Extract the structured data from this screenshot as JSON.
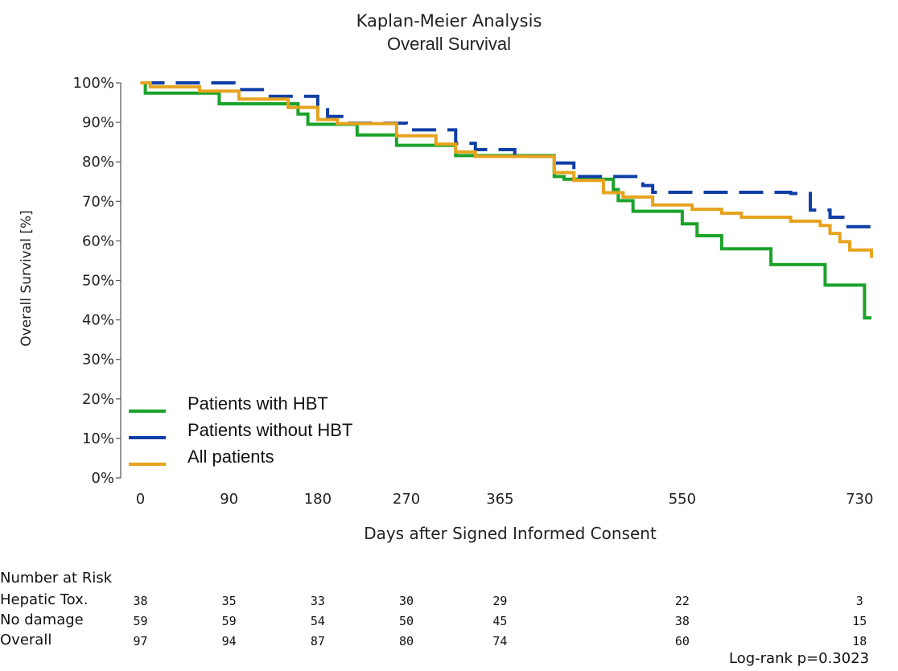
{
  "chart_data": {
    "type": "line",
    "title": "Kaplan-Meier Analysis",
    "subtitle": "Overall Survival",
    "xlabel": "Days after Signed Informed Consent",
    "ylabel": "Overall Survival [%]",
    "x_ticks": [
      "0",
      "90",
      "180",
      "270",
      "365",
      "550",
      "730"
    ],
    "y_ticks": [
      "0%",
      "10%",
      "20%",
      "30%",
      "40%",
      "50%",
      "60%",
      "70%",
      "80%",
      "90%",
      "100%"
    ],
    "xlim": [
      -20,
      760
    ],
    "ylim": [
      0,
      100
    ],
    "grid": false,
    "legend_position": "bottom-left",
    "series": [
      {
        "name": "Patients with HBT",
        "color": "#1aa32a",
        "dash": "solid",
        "x": [
          0,
          5,
          80,
          160,
          170,
          220,
          260,
          320,
          420,
          430,
          480,
          485,
          500,
          550,
          565,
          590,
          640,
          695,
          735,
          742
        ],
        "y": [
          100,
          97.4,
          94.7,
          92.1,
          89.5,
          86.8,
          84.2,
          81.6,
          76.3,
          75.6,
          73,
          70.2,
          67.5,
          64.3,
          61.3,
          58,
          54,
          48.8,
          40.5,
          40.5
        ]
      },
      {
        "name": "Patients without HBT",
        "color": "#0e3fa6",
        "dash": "dashed",
        "x": [
          0,
          80,
          95,
          130,
          180,
          190,
          210,
          270,
          320,
          340,
          380,
          420,
          440,
          485,
          510,
          520,
          540,
          580,
          660,
          680,
          700,
          715,
          742
        ],
        "y": [
          100,
          100,
          98.3,
          96.6,
          93.2,
          91.5,
          89.8,
          88.1,
          84.7,
          83.1,
          81.4,
          79.7,
          76.3,
          76.3,
          74,
          72.3,
          72.3,
          72.3,
          72,
          67.8,
          66,
          63.6,
          63.6
        ]
      },
      {
        "name": "All patients",
        "color": "#e6a31e",
        "dash": "solid",
        "x": [
          0,
          10,
          60,
          100,
          150,
          180,
          200,
          260,
          300,
          320,
          340,
          400,
          420,
          440,
          470,
          490,
          520,
          560,
          590,
          610,
          660,
          690,
          700,
          710,
          720,
          742
        ],
        "y": [
          100,
          99,
          97.9,
          95.9,
          93.8,
          90.7,
          89.7,
          86.6,
          84.5,
          82.5,
          81.4,
          81.4,
          77.3,
          75.3,
          72.2,
          71.1,
          69.1,
          68,
          67,
          66,
          65,
          63.9,
          61.9,
          59.8,
          57.7,
          55.7
        ]
      }
    ],
    "risk_table": {
      "heading": "Number at Risk",
      "rows": [
        {
          "label": "Hepatic Tox.",
          "values": [
            "38",
            "35",
            "33",
            "30",
            "29",
            "22",
            "3"
          ]
        },
        {
          "label": "No damage",
          "values": [
            "59",
            "59",
            "54",
            "50",
            "45",
            "38",
            "15"
          ]
        },
        {
          "label": "Overall",
          "values": [
            "97",
            "94",
            "87",
            "80",
            "74",
            "60",
            "18"
          ]
        }
      ]
    },
    "annotation": "Log-rank p=0.3023"
  }
}
